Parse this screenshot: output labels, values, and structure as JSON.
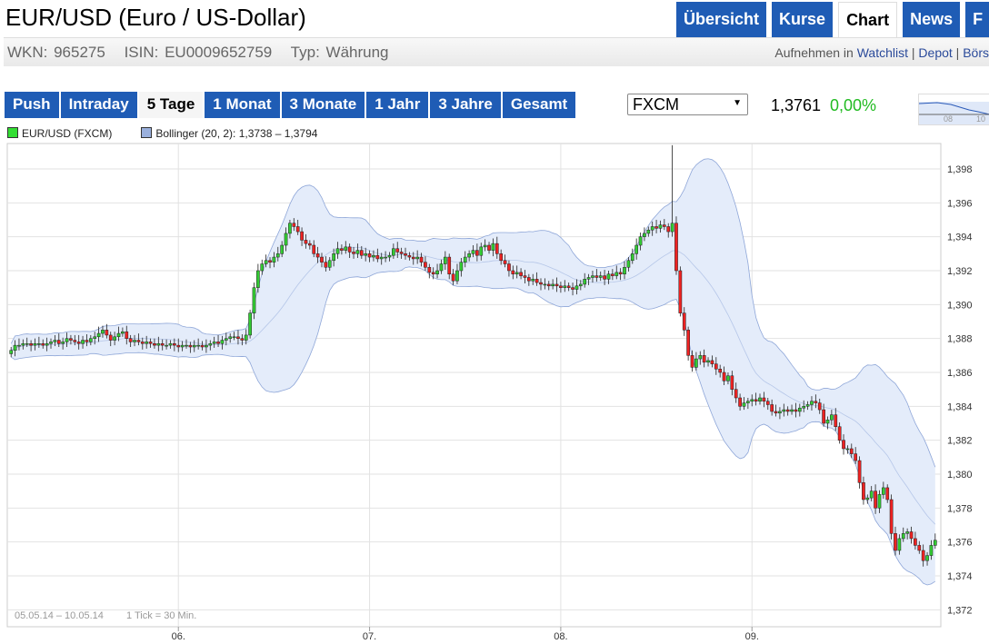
{
  "header": {
    "title": "EUR/USD (Euro / US-Dollar)",
    "tabs": [
      {
        "label": "Übersicht"
      },
      {
        "label": "Kurse"
      },
      {
        "label": "Chart",
        "active": true
      },
      {
        "label": "News"
      },
      {
        "label": "F"
      }
    ]
  },
  "info": {
    "wkn": "WKN: 965275",
    "isin": "ISIN: EU0009652759",
    "typ": "Typ: Währung",
    "links": {
      "prefix": "Aufnehmen in ",
      "watchlist": "Watchlist",
      "sep1": " | ",
      "depot": "Depot",
      "sep2": " | ",
      "boerse": "Börs"
    }
  },
  "ranges": [
    {
      "label": "Push"
    },
    {
      "label": "Intraday"
    },
    {
      "label": "5 Tage",
      "active": true
    },
    {
      "label": "1 Monat"
    },
    {
      "label": "3 Monate"
    },
    {
      "label": "1 Jahr"
    },
    {
      "label": "3 Jahre"
    },
    {
      "label": "Gesamt"
    }
  ],
  "exchange": {
    "selected": "FXCM"
  },
  "quote": {
    "price": "1,3761",
    "change": "0,00%"
  },
  "mini_chart": {
    "labels": [
      "08",
      "10"
    ]
  },
  "legend": {
    "series": "EUR/USD (FXCM)",
    "bollinger": "Bollinger (20, 2): 1,3738 – 1,3794"
  },
  "colors": {
    "up": "#33cc33",
    "down": "#ee2222",
    "band_fill": "#e4ecfa",
    "band_line": "#8ea6d8",
    "accent": "#1f5cb5"
  },
  "chart_data": {
    "type": "candlestick",
    "period_label": "05.05.14 – 10.05.14",
    "tick_label": "1 Tick = 30 Min.",
    "ylim": [
      1.371,
      1.3995
    ],
    "yticks": [
      1.372,
      1.374,
      1.376,
      1.378,
      1.38,
      1.382,
      1.384,
      1.386,
      1.388,
      1.39,
      1.392,
      1.394,
      1.396,
      1.398
    ],
    "ytick_labels": [
      "1,372",
      "1,374",
      "1,376",
      "1,378",
      "1,380",
      "1,382",
      "1,384",
      "1,386",
      "1,388",
      "1,390",
      "1,392",
      "1,394",
      "1,396",
      "1,398"
    ],
    "xticks": [
      {
        "label": "06.",
        "index": 42
      },
      {
        "label": "07.",
        "index": 90
      },
      {
        "label": "08.",
        "index": 138
      },
      {
        "label": "09.",
        "index": 186
      }
    ],
    "closes": [
      1.3873,
      1.3876,
      1.3876,
      1.3877,
      1.3877,
      1.3876,
      1.3877,
      1.3877,
      1.3876,
      1.3877,
      1.3878,
      1.3879,
      1.3877,
      1.3878,
      1.388,
      1.3879,
      1.3878,
      1.3877,
      1.3879,
      1.3878,
      1.388,
      1.3881,
      1.3883,
      1.3885,
      1.3882,
      1.3879,
      1.3881,
      1.3883,
      1.3884,
      1.388,
      1.3878,
      1.3879,
      1.3878,
      1.3877,
      1.3878,
      1.3877,
      1.3876,
      1.3877,
      1.3876,
      1.3876,
      1.3877,
      1.3876,
      1.3875,
      1.3876,
      1.3876,
      1.3875,
      1.3876,
      1.3876,
      1.3875,
      1.3876,
      1.3877,
      1.3878,
      1.3877,
      1.3879,
      1.388,
      1.3881,
      1.3881,
      1.388,
      1.3879,
      1.3882,
      1.3895,
      1.391,
      1.392,
      1.3924,
      1.3926,
      1.3925,
      1.3928,
      1.393,
      1.3935,
      1.3942,
      1.3948,
      1.3946,
      1.3943,
      1.3938,
      1.3936,
      1.3935,
      1.393,
      1.3928,
      1.3925,
      1.3922,
      1.3926,
      1.393,
      1.3933,
      1.3932,
      1.3934,
      1.3931,
      1.393,
      1.3932,
      1.3929,
      1.393,
      1.3928,
      1.3929,
      1.3927,
      1.3928,
      1.3928,
      1.3929,
      1.3933,
      1.3931,
      1.393,
      1.3929,
      1.3928,
      1.3927,
      1.3928,
      1.3925,
      1.3922,
      1.3919,
      1.3918,
      1.392,
      1.3924,
      1.3928,
      1.3918,
      1.3914,
      1.392,
      1.3925,
      1.3928,
      1.393,
      1.3932,
      1.3929,
      1.3934,
      1.3935,
      1.3932,
      1.3936,
      1.393,
      1.3926,
      1.3924,
      1.392,
      1.3918,
      1.3919,
      1.3917,
      1.3916,
      1.3914,
      1.3915,
      1.3913,
      1.3912,
      1.3912,
      1.3911,
      1.3912,
      1.3911,
      1.391,
      1.3911,
      1.391,
      1.3909,
      1.3911,
      1.3912,
      1.3915,
      1.3916,
      1.3917,
      1.3916,
      1.3917,
      1.3915,
      1.3918,
      1.3917,
      1.3919,
      1.3918,
      1.3922,
      1.3926,
      1.393,
      1.3935,
      1.394,
      1.3942,
      1.3944,
      1.3946,
      1.3945,
      1.3947,
      1.3946,
      1.3943,
      1.3948,
      1.392,
      1.3895,
      1.3885,
      1.387,
      1.3863,
      1.3868,
      1.387,
      1.3866,
      1.3867,
      1.3865,
      1.3862,
      1.386,
      1.3855,
      1.3858,
      1.385,
      1.3845,
      1.384,
      1.3842,
      1.3843,
      1.3844,
      1.3843,
      1.3845,
      1.3843,
      1.3841,
      1.3837,
      1.3836,
      1.3837,
      1.3838,
      1.3837,
      1.3838,
      1.3837,
      1.3839,
      1.384,
      1.3841,
      1.3843,
      1.3842,
      1.3838,
      1.383,
      1.3832,
      1.3835,
      1.3828,
      1.382,
      1.3815,
      1.3815,
      1.3812,
      1.3808,
      1.3795,
      1.3785,
      1.3786,
      1.379,
      1.378,
      1.3788,
      1.3792,
      1.3785,
      1.3765,
      1.3755,
      1.3762,
      1.3765,
      1.3766,
      1.3762,
      1.3758,
      1.3755,
      1.3749,
      1.3752,
      1.3758,
      1.3761
    ]
  }
}
